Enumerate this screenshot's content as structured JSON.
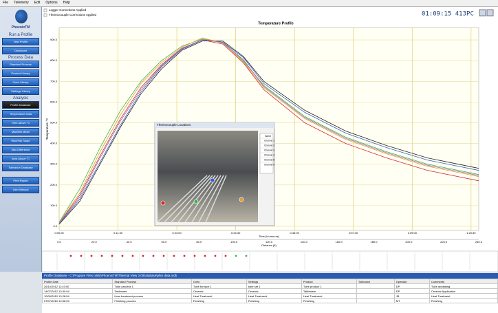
{
  "menu": [
    "File",
    "Telemetry",
    "Edit",
    "Options",
    "Help"
  ],
  "brand": "PhoenixTM",
  "sidebar": [
    {
      "heading": "Run a Profile",
      "buttons": [
        "New Profile",
        "Download"
      ]
    },
    {
      "heading": "Process Data",
      "buttons": [
        "Standard Process",
        "Product Library",
        "Oven Library",
        "Settings Library"
      ]
    },
    {
      "heading": "Analysis",
      "buttons": [
        "Profile Database",
        "Temperature Data",
        "Time Above °C",
        "Max/Min Mean",
        "Rise/Fall Slope",
        "Max Difference",
        "Area Above °C",
        "Tolerance Database"
      ]
    },
    {
      "buttons": [
        "Print Report",
        "User Manual"
      ]
    }
  ],
  "checkboxes": [
    "Logger Corrections Applied",
    "Thermocouple Corrections Applied"
  ],
  "clock": "01:09:15 413PC",
  "chart_data": {
    "type": "line",
    "title": "Temperature Profile",
    "y_label": "Temperature °C",
    "x_label": "Time (hh:mm:ss)",
    "x2_label": "Distance (ft)",
    "x": [
      0,
      4,
      8,
      12,
      16,
      20,
      24,
      28,
      32,
      36,
      40,
      48,
      56,
      64,
      72,
      82
    ],
    "series": [
      {
        "color": "#3cb44b",
        "values": [
          20,
          180,
          380,
          560,
          700,
          800,
          870,
          905,
          890,
          800,
          680,
          530,
          430,
          360,
          300,
          250
        ]
      },
      {
        "color": "#d62728",
        "values": [
          15,
          150,
          340,
          520,
          670,
          780,
          860,
          900,
          880,
          790,
          660,
          500,
          400,
          330,
          270,
          220
        ]
      },
      {
        "color": "#222222",
        "values": [
          10,
          120,
          300,
          480,
          640,
          760,
          850,
          895,
          895,
          820,
          700,
          560,
          460,
          390,
          330,
          280
        ]
      },
      {
        "color": "#3a5fcd",
        "values": [
          12,
          130,
          310,
          490,
          650,
          770,
          855,
          900,
          890,
          815,
          690,
          550,
          450,
          380,
          320,
          270
        ]
      },
      {
        "color": "#e89b2f",
        "values": [
          18,
          160,
          360,
          540,
          690,
          790,
          865,
          910,
          885,
          795,
          670,
          520,
          420,
          350,
          290,
          240
        ]
      },
      {
        "color": "#9a6bb8",
        "values": [
          14,
          140,
          330,
          510,
          660,
          775,
          858,
          902,
          887,
          805,
          675,
          525,
          425,
          355,
          295,
          245
        ]
      }
    ],
    "xlim": [
      0,
      82
    ],
    "ylim": [
      -20,
      960
    ],
    "xticks": [
      {
        "value": 0,
        "label": "0:00:00"
      },
      {
        "value": 11.5,
        "label": "0:11:30"
      },
      {
        "value": 23,
        "label": "0:23:00"
      },
      {
        "value": 34.5,
        "label": "0:34:30"
      },
      {
        "value": 46,
        "label": "0:46:00"
      },
      {
        "value": 57.5,
        "label": "0:57:30"
      },
      {
        "value": 69,
        "label": "1:09:00"
      },
      {
        "value": 80.5,
        "label": "1:20:30"
      }
    ],
    "yticks": [
      {
        "value": 0,
        "label": "0.0"
      },
      {
        "value": 100,
        "label": "100.0"
      },
      {
        "value": 200,
        "label": "200.0"
      },
      {
        "value": 300,
        "label": "300.0"
      },
      {
        "value": 400,
        "label": "400.0"
      },
      {
        "value": 500,
        "label": "500.0"
      },
      {
        "value": 600,
        "label": "600.0"
      },
      {
        "value": 700,
        "label": "700.0"
      },
      {
        "value": 800,
        "label": "800.0"
      },
      {
        "value": 900,
        "label": "900.0"
      }
    ],
    "distance_ticks": [
      "0.0",
      "20.0",
      "40.0",
      "60.0",
      "80.0",
      "100.0",
      "120.0",
      "140.0",
      "160.0",
      "180.0",
      "200.0",
      "220.0",
      "240.0"
    ],
    "grid": true
  },
  "dialog": {
    "title": "Thermocouple Locations",
    "column": "Name",
    "channels": [
      "Channel 1",
      "Channel 2",
      "Channel 3",
      "Channel 4",
      "Channel 5",
      "Channel 6"
    ]
  },
  "table": {
    "title": "Profile Database - C:\\Program Files (x86)\\PhoenixTM\\Thermal View 3.0\\Database\\phm data.mdb",
    "columns": [
      "Profile Date",
      "Standard Process",
      "Oven",
      "Settings",
      "Product",
      "Tolerance",
      "Operator",
      "Comments"
    ],
    "rows": [
      {
        "Profile Date": "26/10/2012 11:43:00",
        "Standard Process": "Tube process 1",
        "Oven": "Tube furnace 1",
        "Settings": "tube set 1",
        "Product": "Tube product 1",
        "Operator": "DP",
        "Comments": "Tube annealing"
      },
      {
        "Profile Date": "14/07/2012 10:30:04",
        "Standard Process": "Tableware",
        "Oven": "Ceramic",
        "Settings": "Ceramic",
        "Product": "Tableware",
        "Operator": "DP",
        "Comments": "Ceramic Application"
      },
      {
        "Profile Date": "10/06/2010 10:28:54",
        "Standard Process": "Heat treatment process",
        "Oven": "Heat Treatment",
        "Settings": "Heat Treatment",
        "Product": "Heat Treatment",
        "Operator": "JB",
        "Comments": "Heat Treatment"
      },
      {
        "Profile Date": "07/07/2010 10:36:09",
        "Standard Process": "Finishing process",
        "Oven": "Finishing",
        "Settings": "Finishing",
        "Product": "Finishing",
        "Operator": "MT",
        "Comments": "Finishing"
      }
    ]
  }
}
